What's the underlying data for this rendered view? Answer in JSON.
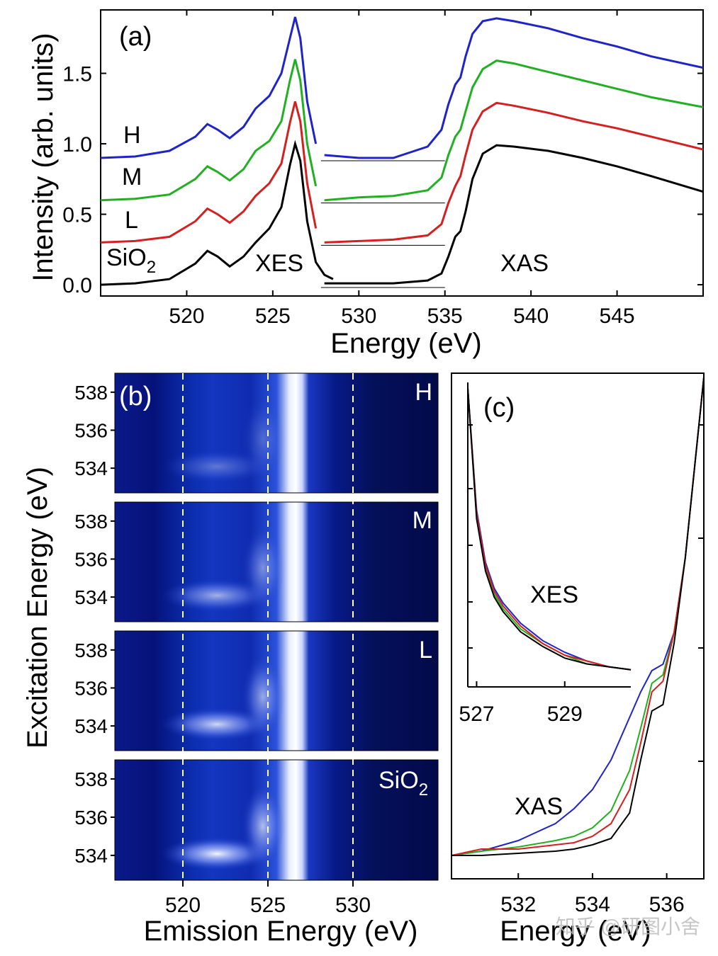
{
  "figure": {
    "panel_a": {
      "label": "(a)",
      "ylabel": "Intensity (arb. units)",
      "xlabel": "Energy (eV)",
      "xticks": [
        "520",
        "525",
        "530",
        "535",
        "540",
        "545"
      ],
      "yticks": [
        "0.0",
        "0.5",
        "1.0",
        "1.5"
      ],
      "annot_xes": "XES",
      "annot_xas": "XAS",
      "curve_labels": [
        "H",
        "M",
        "L",
        "SiO"
      ],
      "sub2": "2"
    },
    "panel_b": {
      "label": "(b)",
      "ylabel": "Excitation Energy (eV)",
      "xlabel": "Emission Energy (eV)",
      "xticks": [
        "520",
        "525",
        "530"
      ],
      "yticks": [
        "538",
        "536",
        "534"
      ],
      "maps": [
        "H",
        "M",
        "L",
        "SiO"
      ],
      "sub2": "2"
    },
    "panel_c": {
      "label": "(c)",
      "xlabel": "Energy (eV)",
      "xticks": [
        "532",
        "534",
        "536"
      ],
      "annot_xas": "XAS",
      "inset": {
        "xticks": [
          "527",
          "529"
        ],
        "annot": "XES"
      }
    },
    "watermark": "知乎 @研图小舍"
  },
  "chart_data": [
    {
      "type": "line",
      "title": "(a)",
      "xlabel": "Energy (eV)",
      "ylabel": "Intensity (arb. units)",
      "xlim": [
        515,
        550
      ],
      "ylim": [
        -0.08,
        1.95
      ],
      "colors": {
        "H": "#1f24c8",
        "M": "#22b022",
        "L": "#d42020",
        "SiO2": "#000000"
      },
      "series": [
        {
          "name": "SiO2",
          "offset": 0.0,
          "xes_x": [
            515,
            517,
            519,
            520.5,
            521.2,
            521.8,
            522.5,
            523.3,
            524,
            524.8,
            525.5,
            526,
            526.3,
            526.6,
            527,
            527.5,
            528,
            528.5
          ],
          "xes_y": [
            0,
            0.01,
            0.04,
            0.15,
            0.24,
            0.2,
            0.13,
            0.2,
            0.3,
            0.4,
            0.55,
            0.85,
            1.0,
            0.88,
            0.45,
            0.16,
            0.07,
            0.04
          ],
          "xas_x": [
            528,
            532,
            534,
            534.8,
            535.2,
            535.6,
            535.9,
            536.2,
            536.6,
            537.2,
            538,
            539,
            541,
            543,
            545,
            547,
            550
          ],
          "xas_y": [
            0.01,
            0.01,
            0.03,
            0.08,
            0.2,
            0.34,
            0.38,
            0.52,
            0.75,
            0.93,
            0.99,
            0.98,
            0.95,
            0.9,
            0.84,
            0.77,
            0.66
          ]
        },
        {
          "name": "L",
          "offset": 0.3,
          "xes_x": [
            515,
            517,
            519,
            520.5,
            521.2,
            521.8,
            522.5,
            523.3,
            524,
            524.8,
            525.5,
            526,
            526.3,
            526.6,
            527,
            527.5
          ],
          "xes_y": [
            0.3,
            0.31,
            0.34,
            0.45,
            0.54,
            0.5,
            0.44,
            0.52,
            0.63,
            0.72,
            0.86,
            1.15,
            1.3,
            1.16,
            0.72,
            0.4
          ],
          "xas_x": [
            528,
            530,
            532,
            534,
            534.8,
            535.2,
            535.6,
            535.9,
            536.2,
            536.6,
            537.2,
            538,
            539,
            541,
            543,
            545,
            547,
            550
          ],
          "xas_y": [
            0.3,
            0.31,
            0.32,
            0.35,
            0.43,
            0.58,
            0.7,
            0.77,
            0.92,
            1.1,
            1.23,
            1.29,
            1.27,
            1.22,
            1.16,
            1.11,
            1.05,
            0.96
          ]
        },
        {
          "name": "M",
          "offset": 0.6,
          "xes_x": [
            515,
            517,
            519,
            520.5,
            521.2,
            521.8,
            522.5,
            523.3,
            524,
            524.8,
            525.5,
            526,
            526.3,
            526.6,
            527,
            527.5
          ],
          "xes_y": [
            0.6,
            0.61,
            0.64,
            0.75,
            0.84,
            0.8,
            0.74,
            0.82,
            0.95,
            1.02,
            1.16,
            1.45,
            1.6,
            1.45,
            1.0,
            0.7
          ],
          "xas_x": [
            528,
            530,
            532,
            534,
            534.8,
            535.2,
            535.6,
            535.9,
            536.2,
            536.6,
            537.2,
            538,
            539,
            541,
            543,
            545,
            547,
            550
          ],
          "xas_y": [
            0.6,
            0.62,
            0.63,
            0.67,
            0.76,
            0.92,
            1.05,
            1.1,
            1.23,
            1.4,
            1.53,
            1.59,
            1.57,
            1.51,
            1.45,
            1.39,
            1.33,
            1.26
          ]
        },
        {
          "name": "H",
          "offset": 0.9,
          "xes_x": [
            515,
            517,
            519,
            520.5,
            521.2,
            521.8,
            522.5,
            523.3,
            524,
            524.8,
            525.5,
            526,
            526.3,
            526.6,
            527,
            527.5
          ],
          "xes_y": [
            0.9,
            0.91,
            0.95,
            1.05,
            1.14,
            1.1,
            1.04,
            1.12,
            1.25,
            1.34,
            1.5,
            1.75,
            1.9,
            1.75,
            1.3,
            1.0
          ],
          "xas_x": [
            528,
            530,
            532,
            534,
            534.8,
            535.2,
            535.6,
            535.9,
            536.2,
            536.6,
            537.2,
            538,
            539,
            541,
            543,
            545,
            547,
            550
          ],
          "xas_y": [
            0.92,
            0.9,
            0.9,
            0.98,
            1.1,
            1.28,
            1.42,
            1.47,
            1.62,
            1.78,
            1.87,
            1.89,
            1.87,
            1.82,
            1.75,
            1.69,
            1.62,
            1.54
          ]
        }
      ]
    },
    {
      "type": "heatmap",
      "title": "(b)",
      "xlabel": "Emission Energy (eV)",
      "ylabel": "Excitation Energy (eV)",
      "xlim": [
        516,
        535
      ],
      "ylim": [
        532.7,
        539
      ],
      "guide_lines_x": [
        520,
        525,
        530
      ],
      "maps": [
        "H",
        "M",
        "L",
        "SiO2"
      ],
      "peak_emission": 526.3
    },
    {
      "type": "line",
      "title": "(c)",
      "xlabel": "Energy (eV)",
      "xlim": [
        530.2,
        537
      ],
      "colors": {
        "H": "#1f24c8",
        "M": "#22b022",
        "L": "#d42020",
        "SiO2": "#000000"
      },
      "series": [
        {
          "name": "H",
          "x": [
            530.2,
            531,
            532,
            533,
            533.5,
            534,
            534.5,
            535,
            535.3,
            535.6,
            535.9,
            536.2,
            536.5,
            537
          ],
          "y": [
            0.05,
            0.07,
            0.12,
            0.2,
            0.27,
            0.36,
            0.5,
            0.7,
            0.82,
            0.92,
            0.95,
            1.1,
            1.45,
            2.3
          ]
        },
        {
          "name": "M",
          "x": [
            530.2,
            531,
            532,
            533,
            533.5,
            534,
            534.5,
            535,
            535.3,
            535.6,
            535.9,
            536.2,
            536.5,
            537
          ],
          "y": [
            0.05,
            0.07,
            0.09,
            0.12,
            0.14,
            0.18,
            0.26,
            0.45,
            0.65,
            0.86,
            0.9,
            1.1,
            1.45,
            2.3
          ]
        },
        {
          "name": "L",
          "x": [
            530.2,
            531,
            532,
            533,
            533.5,
            534,
            534.5,
            535,
            535.3,
            535.6,
            535.9,
            536.2,
            536.5,
            537
          ],
          "y": [
            0.05,
            0.08,
            0.08,
            0.1,
            0.11,
            0.14,
            0.2,
            0.36,
            0.58,
            0.82,
            0.87,
            1.1,
            1.45,
            2.3
          ]
        },
        {
          "name": "SiO2",
          "x": [
            530.2,
            531,
            532,
            533,
            533.5,
            534,
            534.5,
            535,
            535.3,
            535.6,
            535.9,
            536.2,
            536.5,
            537
          ],
          "y": [
            0.05,
            0.05,
            0.06,
            0.07,
            0.08,
            0.1,
            0.13,
            0.25,
            0.5,
            0.73,
            0.76,
            1.05,
            1.45,
            2.3
          ]
        }
      ],
      "inset": {
        "type": "line",
        "xlabel": "",
        "xlim": [
          526.8,
          530.5
        ],
        "x": [
          526.8,
          527.0,
          527.2,
          527.4,
          527.6,
          528.0,
          528.5,
          529.0,
          529.5,
          530.0,
          530.5
        ],
        "series": [
          {
            "name": "H",
            "y": [
              1.0,
              0.58,
              0.4,
              0.31,
              0.26,
              0.19,
              0.13,
              0.09,
              0.06,
              0.04,
              0.03
            ]
          },
          {
            "name": "M",
            "y": [
              1.0,
              0.56,
              0.38,
              0.29,
              0.24,
              0.17,
              0.12,
              0.08,
              0.05,
              0.04,
              0.03
            ]
          },
          {
            "name": "L",
            "y": [
              1.0,
              0.57,
              0.39,
              0.3,
              0.25,
              0.18,
              0.12,
              0.08,
              0.06,
              0.04,
              0.03
            ]
          },
          {
            "name": "SiO2",
            "y": [
              1.0,
              0.55,
              0.37,
              0.28,
              0.23,
              0.16,
              0.11,
              0.07,
              0.05,
              0.04,
              0.03
            ]
          }
        ]
      }
    }
  ]
}
